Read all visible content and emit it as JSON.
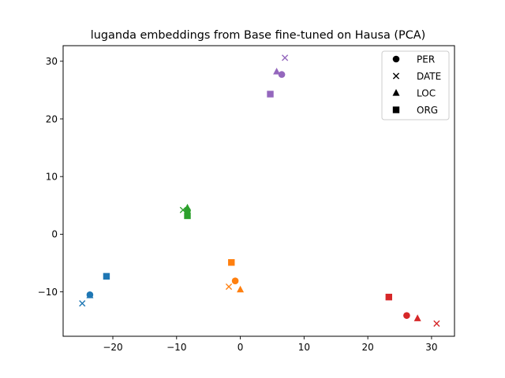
{
  "chart_data": {
    "type": "scatter",
    "title": "luganda embeddings from Base fine-tuned on Hausa (PCA)",
    "xlabel": "",
    "ylabel": "",
    "xlim": [
      -27.8,
      33.6
    ],
    "ylim": [
      -17.7,
      32.7
    ],
    "xticks": [
      -20,
      -10,
      0,
      10,
      20,
      30
    ],
    "yticks": [
      -10,
      0,
      10,
      20,
      30
    ],
    "xtick_labels": [
      "−20",
      "−10",
      "0",
      "10",
      "20",
      "30"
    ],
    "ytick_labels": [
      "−10",
      "0",
      "10",
      "20",
      "30"
    ],
    "grid": false,
    "legend_placement": "top-right",
    "legend": [
      {
        "label": "PER",
        "marker": "circle"
      },
      {
        "label": "DATE",
        "marker": "x"
      },
      {
        "label": "LOC",
        "marker": "triangle"
      },
      {
        "label": "ORG",
        "marker": "square"
      }
    ],
    "groups": [
      {
        "color": "#1f77b4",
        "points": [
          {
            "category": "PER",
            "x": -23.6,
            "y": -10.5
          },
          {
            "category": "DATE",
            "x": -24.8,
            "y": -12.0
          },
          {
            "category": "LOC",
            "x": -23.6,
            "y": -10.6
          },
          {
            "category": "ORG",
            "x": -21.0,
            "y": -7.3
          }
        ]
      },
      {
        "color": "#ff7f0e",
        "points": [
          {
            "category": "PER",
            "x": -0.8,
            "y": -8.1
          },
          {
            "category": "DATE",
            "x": -1.8,
            "y": -9.1
          },
          {
            "category": "LOC",
            "x": 0.0,
            "y": -9.6
          },
          {
            "category": "ORG",
            "x": -1.4,
            "y": -4.9
          }
        ]
      },
      {
        "color": "#2ca02c",
        "points": [
          {
            "category": "PER",
            "x": -8.3,
            "y": 4.1
          },
          {
            "category": "DATE",
            "x": -9.0,
            "y": 4.2
          },
          {
            "category": "LOC",
            "x": -8.3,
            "y": 4.6
          },
          {
            "category": "ORG",
            "x": -8.3,
            "y": 3.2
          }
        ]
      },
      {
        "color": "#9467bd",
        "points": [
          {
            "category": "PER",
            "x": 6.5,
            "y": 27.7
          },
          {
            "category": "DATE",
            "x": 7.0,
            "y": 30.6
          },
          {
            "category": "LOC",
            "x": 5.7,
            "y": 28.2
          },
          {
            "category": "ORG",
            "x": 4.7,
            "y": 24.3
          }
        ]
      },
      {
        "color": "#d62728",
        "points": [
          {
            "category": "PER",
            "x": 26.1,
            "y": -14.1
          },
          {
            "category": "DATE",
            "x": 30.8,
            "y": -15.5
          },
          {
            "category": "LOC",
            "x": 27.8,
            "y": -14.6
          },
          {
            "category": "ORG",
            "x": 23.3,
            "y": -10.9
          }
        ]
      }
    ]
  }
}
